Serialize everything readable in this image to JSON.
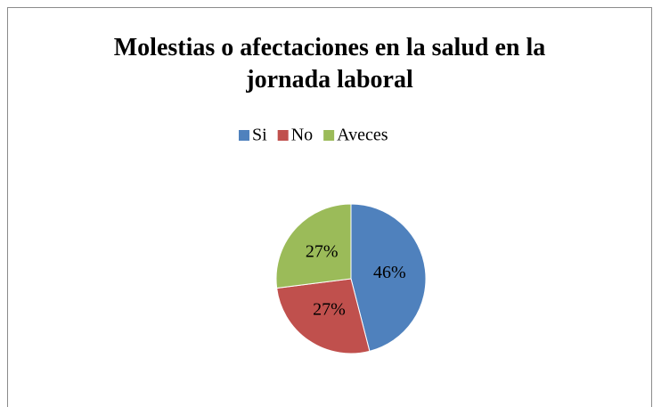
{
  "chart_data": {
    "type": "pie",
    "title": "Molestias o afectaciones en la salud en la jornada laboral",
    "categories": [
      "Si",
      "No",
      "Aveces"
    ],
    "values": [
      46,
      27,
      27
    ],
    "value_labels": [
      "46%",
      "27%",
      "27%"
    ],
    "colors": [
      "#4f81bd",
      "#c0504d",
      "#9bbb59"
    ],
    "legend": "top"
  }
}
